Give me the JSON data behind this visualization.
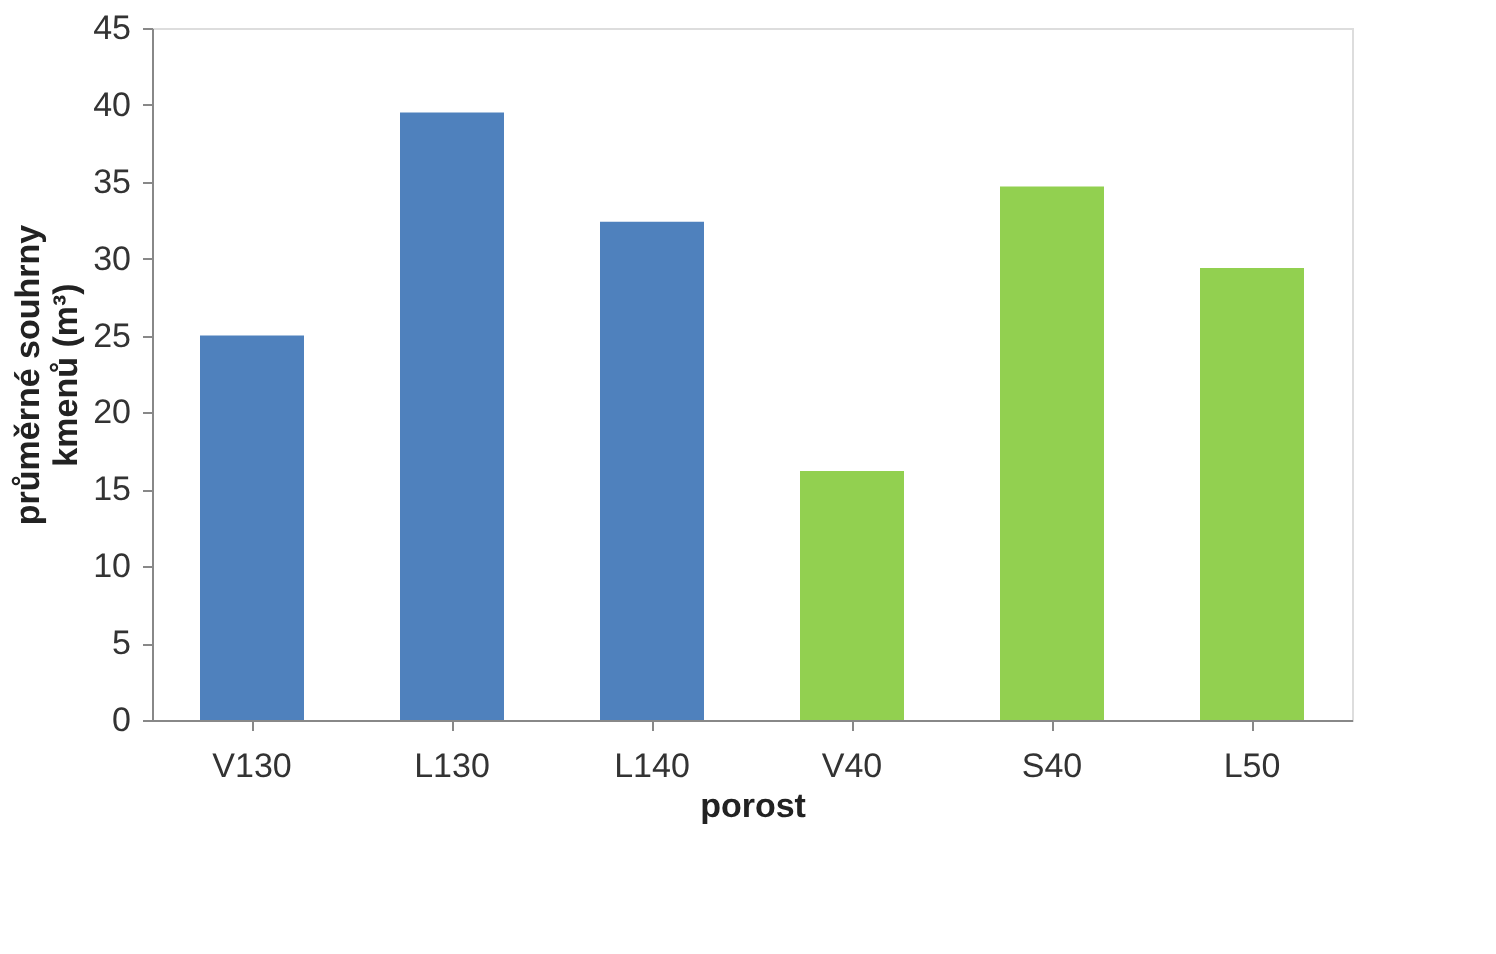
{
  "chart_data": {
    "type": "bar",
    "categories": [
      "V130",
      "L130",
      "L140",
      "V40",
      "S40",
      "L50"
    ],
    "values": [
      25.0,
      39.5,
      32.4,
      16.2,
      34.7,
      29.4
    ],
    "colors": [
      "#4f81bd",
      "#4f81bd",
      "#4f81bd",
      "#92d050",
      "#92d050",
      "#92d050"
    ],
    "xlabel": "porost",
    "ylabel": "průměrné souhrny\nkmenů (m³)",
    "ylim": [
      0,
      45
    ],
    "yticks": [
      0,
      5,
      10,
      15,
      20,
      25,
      30,
      35,
      40,
      45
    ],
    "grid": false
  }
}
